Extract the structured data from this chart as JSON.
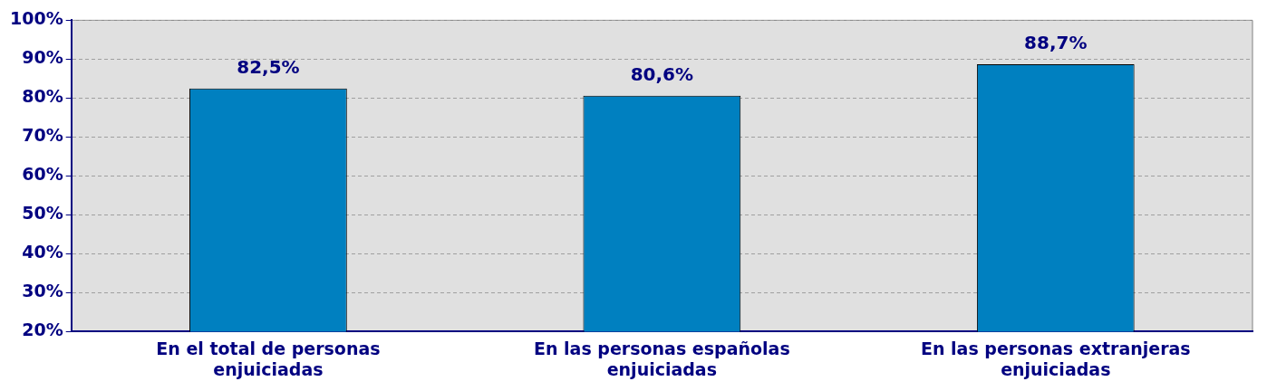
{
  "chart_data": {
    "type": "bar",
    "categories": [
      "En el total de personas enjuiciadas",
      "En las personas españolas enjuiciadas",
      "En las personas extranjeras enjuiciadas"
    ],
    "values": [
      82.5,
      80.6,
      88.7
    ],
    "value_labels": [
      "82,5%",
      "80,6%",
      "88,7%"
    ],
    "color": "#0080c0",
    "ylim": [
      20,
      100
    ],
    "yticks": [
      {
        "value": 20,
        "label": "20%"
      },
      {
        "value": 30,
        "label": "30%"
      },
      {
        "value": 40,
        "label": "40%"
      },
      {
        "value": 50,
        "label": "50%"
      },
      {
        "value": 60,
        "label": "60%"
      },
      {
        "value": 70,
        "label": "70%"
      },
      {
        "value": 80,
        "label": "80%"
      },
      {
        "value": 90,
        "label": "90%"
      },
      {
        "value": 100,
        "label": "100%"
      }
    ],
    "grid": "y",
    "legend": false
  }
}
